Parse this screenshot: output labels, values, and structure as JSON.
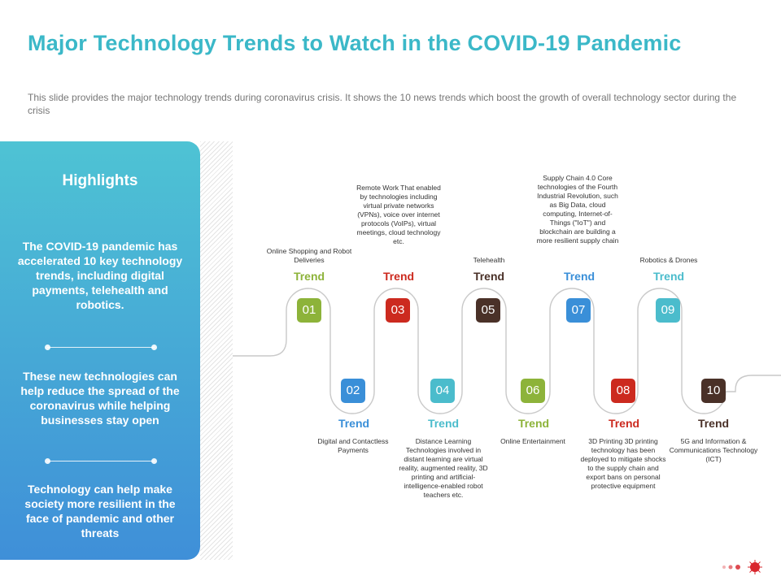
{
  "slide": {
    "title": "Major Technology Trends to Watch in the COVID-19 Pandemic",
    "subtitle": "This slide provides  the major technology trends during coronavirus  crisis. It shows the 10 news trends which boost the growth of overall  technology sector during the crisis"
  },
  "highlights": {
    "title": "Highlights",
    "items": [
      "The COVID-19 pandemic has accelerated 10 key technology trends, including digital payments, telehealth and robotics.",
      "These new technologies can help reduce the spread of the coronavirus while helping businesses stay open",
      "Technology can help make society more resilient in the face of pandemic and other threats"
    ]
  },
  "trends": [
    {
      "number": "01",
      "label": "Trend",
      "color": "#8db33a",
      "description": "Online Shopping and Robot Deliveries"
    },
    {
      "number": "02",
      "label": "Trend",
      "color": "#3a8fd8",
      "description": "Digital and Contactless Payments"
    },
    {
      "number": "03",
      "label": "Trend",
      "color": "#cc2a1f",
      "description": "Remote Work That enabled by technologies including virtual private networks (VPNs), voice over internet protocols (VoIPs), virtual meetings, cloud technology etc."
    },
    {
      "number": "04",
      "label": "Trend",
      "color": "#4bbccc",
      "description": "Distance Learning Technologies involved in distant learning are virtual reality, augmented reality, 3D printing and artificial-intelligence-enabled robot teachers etc."
    },
    {
      "number": "05",
      "label": "Trend",
      "color": "#4a3128",
      "description": "Telehealth"
    },
    {
      "number": "06",
      "label": "Trend",
      "color": "#8db33a",
      "description": "Online Entertainment"
    },
    {
      "number": "07",
      "label": "Trend",
      "color": "#3a8fd8",
      "description": "Supply Chain 4.0 Core technologies of the Fourth Industrial Revolution, such as Big Data, cloud computing, Internet-of-Things (\"IoT\") and blockchain are building a more resilient supply chain"
    },
    {
      "number": "08",
      "label": "Trend",
      "color": "#cc2a1f",
      "description": "3D Printing 3D printing technology has been deployed to mitigate shocks to the supply chain and export bans on personal protective equipment"
    },
    {
      "number": "09",
      "label": "Trend",
      "color": "#4bbccc",
      "description": "Robotics & Drones"
    },
    {
      "number": "10",
      "label": "Trend",
      "color": "#4a3128",
      "description": "5G and Information & Communications Technology (ICT)"
    }
  ],
  "colors": {
    "title": "#3bb8c8",
    "track": "#c9c9c9",
    "panel_top": "#4ec3d4",
    "panel_bottom": "#3f8fd8",
    "dots": "#d9272e"
  }
}
